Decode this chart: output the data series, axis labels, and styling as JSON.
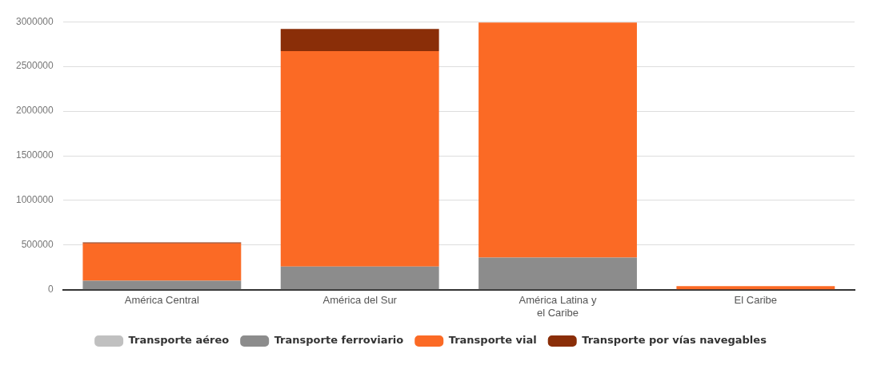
{
  "chart_data": {
    "type": "bar",
    "stacked": true,
    "categories": [
      "América Central",
      "América del Sur",
      "América Latina y el Caribe",
      "El Caribe"
    ],
    "series": [
      {
        "name": "Transporte aéreo",
        "color": "#c0c0c0",
        "values": [
          0,
          0,
          0,
          0
        ]
      },
      {
        "name": "Transporte ferroviario",
        "color": "#8c8c8c",
        "values": [
          100000,
          260000,
          360000,
          0
        ]
      },
      {
        "name": "Transporte vial",
        "color": "#fb6a25",
        "values": [
          420000,
          2410000,
          2630000,
          40000
        ]
      },
      {
        "name": "Transporte por vías navegables",
        "color": "#8a2e08",
        "values": [
          10000,
          250000,
          0,
          0
        ]
      }
    ],
    "ylim": [
      0,
      3000000
    ],
    "yticks": [
      0,
      500000,
      1000000,
      1500000,
      2000000,
      2500000,
      3000000
    ],
    "grid": "y",
    "legend": "bottom"
  }
}
